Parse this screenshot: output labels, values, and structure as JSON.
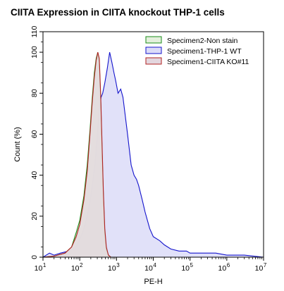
{
  "chart_data": {
    "type": "area",
    "title": "CIITA Expression in CIITA knockout THP-1 cells",
    "xlabel": "PE-H",
    "ylabel": "Count  (%)",
    "x_scale": "log",
    "xlim": [
      10,
      10000000
    ],
    "ylim": [
      0,
      110
    ],
    "grid": false,
    "legend_position": "top-right",
    "x_ticks": [
      {
        "base": "10",
        "exp": "1",
        "value": 10
      },
      {
        "base": "10",
        "exp": "2",
        "value": 100
      },
      {
        "base": "10",
        "exp": "3",
        "value": 1000
      },
      {
        "base": "10",
        "exp": "4",
        "value": 10000
      },
      {
        "base": "10",
        "exp": "5",
        "value": 100000
      },
      {
        "base": "10",
        "exp": "6",
        "value": 1000000
      },
      {
        "base": "10",
        "exp": "7",
        "value": 10000000
      }
    ],
    "y_ticks": [
      "0",
      "20",
      "40",
      "60",
      "80",
      "100",
      "110"
    ],
    "series": [
      {
        "name": "Specimen2-Non stain",
        "stroke": "#1a8c1a",
        "fill": "#e4f0dc",
        "points": [
          [
            10,
            0
          ],
          [
            20,
            0.5
          ],
          [
            40,
            2
          ],
          [
            60,
            5
          ],
          [
            80,
            12
          ],
          [
            100,
            18
          ],
          [
            130,
            30
          ],
          [
            160,
            45
          ],
          [
            190,
            62
          ],
          [
            220,
            78
          ],
          [
            250,
            90
          ],
          [
            280,
            97
          ],
          [
            310,
            100
          ],
          [
            340,
            95
          ],
          [
            370,
            78
          ],
          [
            400,
            55
          ],
          [
            440,
            30
          ],
          [
            480,
            12
          ],
          [
            530,
            4
          ],
          [
            600,
            1
          ],
          [
            700,
            0
          ]
        ]
      },
      {
        "name": "Specimen1-THP-1 WT",
        "stroke": "#1414cc",
        "fill": "#dcdcf8",
        "points": [
          [
            10,
            0
          ],
          [
            15,
            2
          ],
          [
            20,
            1
          ],
          [
            30,
            2
          ],
          [
            50,
            3
          ],
          [
            80,
            5
          ],
          [
            120,
            12
          ],
          [
            160,
            20
          ],
          [
            200,
            30
          ],
          [
            260,
            45
          ],
          [
            300,
            60
          ],
          [
            340,
            72
          ],
          [
            380,
            78
          ],
          [
            420,
            80
          ],
          [
            480,
            85
          ],
          [
            560,
            92
          ],
          [
            650,
            100
          ],
          [
            750,
            95
          ],
          [
            850,
            90
          ],
          [
            950,
            86
          ],
          [
            1100,
            80
          ],
          [
            1300,
            82
          ],
          [
            1500,
            78
          ],
          [
            1700,
            70
          ],
          [
            2000,
            60
          ],
          [
            2500,
            45
          ],
          [
            3000,
            40
          ],
          [
            3500,
            38
          ],
          [
            4000,
            35
          ],
          [
            5000,
            28
          ],
          [
            6000,
            22
          ],
          [
            8000,
            14
          ],
          [
            10000,
            10
          ],
          [
            15000,
            8
          ],
          [
            20000,
            6
          ],
          [
            30000,
            4
          ],
          [
            50000,
            3
          ],
          [
            80000,
            3
          ],
          [
            100000,
            2
          ],
          [
            200000,
            2
          ],
          [
            500000,
            2
          ],
          [
            1000000,
            1
          ],
          [
            3000000,
            1
          ],
          [
            10000000,
            0
          ]
        ]
      },
      {
        "name": "Specimen1-CIITA KO#11",
        "stroke": "#b22222",
        "fill": "#e3d6de",
        "points": [
          [
            10,
            0
          ],
          [
            20,
            0.5
          ],
          [
            40,
            2
          ],
          [
            60,
            5
          ],
          [
            80,
            10
          ],
          [
            100,
            16
          ],
          [
            130,
            28
          ],
          [
            160,
            42
          ],
          [
            190,
            60
          ],
          [
            220,
            76
          ],
          [
            250,
            88
          ],
          [
            280,
            96
          ],
          [
            310,
            100
          ],
          [
            340,
            97
          ],
          [
            370,
            80
          ],
          [
            400,
            58
          ],
          [
            440,
            32
          ],
          [
            480,
            14
          ],
          [
            530,
            5
          ],
          [
            600,
            1
          ],
          [
            700,
            0
          ]
        ]
      }
    ]
  }
}
